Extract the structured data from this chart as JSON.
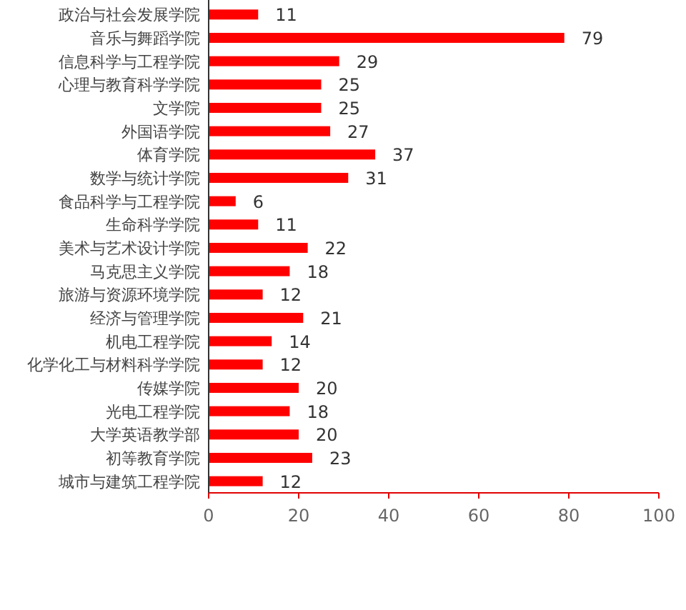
{
  "chart_data": {
    "type": "bar",
    "orientation": "horizontal",
    "categories": [
      "政治与社会发展学院",
      "音乐与舞蹈学院",
      "信息科学与工程学院",
      "心理与教育科学学院",
      "文学院",
      "外国语学院",
      "体育学院",
      "数学与统计学院",
      "食品科学与工程学院",
      "生命科学学院",
      "美术与艺术设计学院",
      "马克思主义学院",
      "旅游与资源环境学院",
      "经济与管理学院",
      "机电工程学院",
      "化学化工与材料科学学院",
      "传媒学院",
      "光电工程学院",
      "大学英语教学部",
      "初等教育学院",
      "城市与建筑工程学院"
    ],
    "values": [
      11,
      79,
      29,
      25,
      25,
      27,
      37,
      31,
      6,
      11,
      22,
      18,
      12,
      21,
      14,
      12,
      20,
      18,
      20,
      23,
      12
    ],
    "color": "#ff0000",
    "xlim": [
      0,
      100
    ],
    "xticks": [
      0,
      20,
      40,
      60,
      80,
      100
    ],
    "data_labels": true
  }
}
